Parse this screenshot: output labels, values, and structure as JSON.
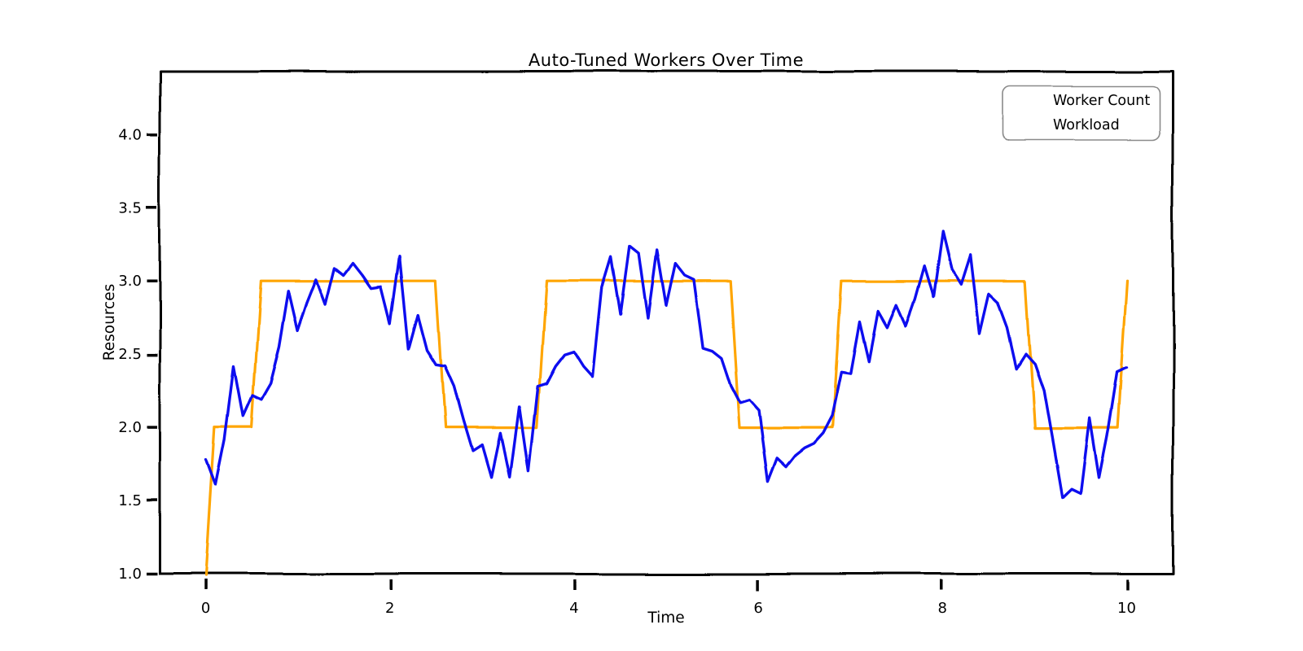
{
  "figure": {
    "background": "#ffffff"
  },
  "chart_data": {
    "type": "line",
    "style": "xkcd-hand-drawn",
    "title": "Auto-Tuned Workers Over Time",
    "xlabel": "Time",
    "ylabel": "Resources",
    "xlim": [
      -0.5,
      10.5
    ],
    "ylim": [
      1.0,
      4.43
    ],
    "x_ticks": [
      "0",
      "2",
      "4",
      "6",
      "8",
      "10"
    ],
    "x_tick_values": [
      0,
      2,
      4,
      6,
      8,
      10
    ],
    "y_ticks": [
      "1.0",
      "1.5",
      "2.0",
      "2.5",
      "3.0",
      "3.5",
      "4.0"
    ],
    "y_tick_values": [
      1.0,
      1.5,
      2.0,
      2.5,
      3.0,
      3.5,
      4.0
    ],
    "grid": false,
    "legend_position": "upper right",
    "axis_color": "#000000",
    "series": [
      {
        "name": "Worker Count",
        "color": "#FFA500",
        "line_style": "step",
        "step_changes": [
          [
            0.0,
            1
          ],
          [
            0.1,
            2
          ],
          [
            0.6,
            3
          ],
          [
            2.6,
            2
          ],
          [
            3.7,
            3
          ],
          [
            5.8,
            2
          ],
          [
            6.9,
            3
          ],
          [
            9.0,
            2
          ],
          [
            10.0,
            3
          ]
        ],
        "t_start": 0.0,
        "t_end": 10.0,
        "t_step": 0.1
      },
      {
        "name": "Workload",
        "color": "#0B0BEF",
        "line_style": "solid",
        "x_start": 0.0,
        "x_step": 0.1,
        "values": [
          1.78,
          1.61,
          1.92,
          2.42,
          2.08,
          2.22,
          2.19,
          2.3,
          2.55,
          2.93,
          2.66,
          2.85,
          3.01,
          2.84,
          3.09,
          3.04,
          3.12,
          3.04,
          2.95,
          2.96,
          2.71,
          3.17,
          2.54,
          2.77,
          2.53,
          2.43,
          2.42,
          2.28,
          2.05,
          1.84,
          1.88,
          1.66,
          1.96,
          1.66,
          2.14,
          1.7,
          2.28,
          2.3,
          2.42,
          2.5,
          2.52,
          2.42,
          2.35,
          2.96,
          3.17,
          2.77,
          3.24,
          3.19,
          2.74,
          3.21,
          2.83,
          3.12,
          3.04,
          3.01,
          2.54,
          2.52,
          2.47,
          2.28,
          2.16,
          2.18,
          2.11,
          1.63,
          1.79,
          1.73,
          1.81,
          1.86,
          1.89,
          1.96,
          2.08,
          2.38,
          2.37,
          2.72,
          2.45,
          2.79,
          2.68,
          2.83,
          2.69,
          2.87,
          3.1,
          2.89,
          3.34,
          3.08,
          2.98,
          3.18,
          2.64,
          2.91,
          2.85,
          2.68,
          2.4,
          2.5,
          2.43,
          2.25,
          1.89,
          1.52,
          1.58,
          1.55,
          2.06,
          1.66,
          1.98,
          2.38,
          2.41
        ]
      }
    ]
  },
  "legend": {
    "border_color": "#8a8a8a",
    "items": [
      {
        "label": "Worker Count",
        "color": "#FFA500"
      },
      {
        "label": "Workload",
        "color": "#0B0BEF"
      }
    ]
  }
}
